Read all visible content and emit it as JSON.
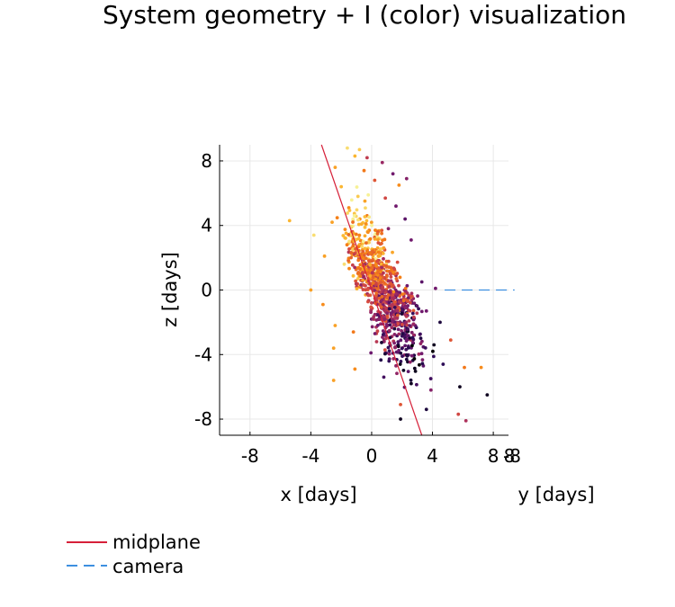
{
  "chart_data": {
    "type": "scatter",
    "title": "System geometry + I (color) visualization",
    "xlabel": "x [days]",
    "ylabel": "z [days]",
    "ylabel2": "y [days]",
    "xlim": [
      -10,
      9
    ],
    "ylim": [
      -9,
      9
    ],
    "xticks": [
      -8,
      -4,
      0,
      4,
      8
    ],
    "yticks": [
      8,
      4,
      0,
      -4,
      -8
    ],
    "xtick_labels": [
      "-8",
      "-4",
      "0",
      "4",
      "8"
    ],
    "ytick_labels": [
      "8",
      "4",
      "0",
      "-4",
      "-8"
    ],
    "y_axis_tick_overlap": "-8",
    "grid": true,
    "colormap": "inferno",
    "colors": {
      "midplane": "#d62039",
      "camera": "#3d8fe0",
      "grid": "#e8e8e8",
      "inferno": [
        "#000004",
        "#2a0b55",
        "#6b186e",
        "#a52c60",
        "#d84c3e",
        "#f57d15",
        "#fbb932",
        "#f7f195"
      ]
    },
    "series": [
      {
        "name": "midplane",
        "style": "solid",
        "x": [
          -3.3,
          3.3
        ],
        "y": [
          9,
          -9
        ]
      },
      {
        "name": "camera",
        "style": "dashed",
        "x": [
          4.8,
          9.4
        ],
        "y": [
          0,
          0
        ]
      }
    ],
    "points": [
      [
        -1.6,
        8.8,
        0.95
      ],
      [
        -0.8,
        8.7,
        0.9
      ],
      [
        -1.1,
        8.3,
        0.85
      ],
      [
        -2.4,
        7.6,
        0.8
      ],
      [
        -0.3,
        8.2,
        0.5
      ],
      [
        0.7,
        7.9,
        0.4
      ],
      [
        1.4,
        7.2,
        0.3
      ],
      [
        -0.5,
        7.4,
        0.7
      ],
      [
        0.2,
        6.8,
        0.6
      ],
      [
        1.8,
        6.5,
        0.75
      ],
      [
        2.3,
        6.9,
        0.35
      ],
      [
        -2.0,
        6.4,
        0.85
      ],
      [
        -0.9,
        5.8,
        0.9
      ],
      [
        0.9,
        5.7,
        0.55
      ],
      [
        1.6,
        5.2,
        0.3
      ],
      [
        -1.5,
        5.1,
        0.75
      ],
      [
        -5.4,
        4.3,
        0.85
      ],
      [
        -3.8,
        3.4,
        0.95
      ],
      [
        -2.6,
        4.2,
        0.8
      ],
      [
        -0.3,
        4.6,
        0.7
      ],
      [
        2.2,
        4.4,
        0.25
      ],
      [
        2.6,
        3.1,
        0.3
      ],
      [
        -1.2,
        3.2,
        0.9
      ],
      [
        0.8,
        2.6,
        0.6
      ],
      [
        -3.1,
        2.1,
        0.8
      ],
      [
        -1.8,
        1.6,
        0.95
      ],
      [
        -0.6,
        1.4,
        0.85
      ],
      [
        0.4,
        1.0,
        0.7
      ],
      [
        1.6,
        0.9,
        0.4
      ],
      [
        3.3,
        0.5,
        0.25
      ],
      [
        4.2,
        0.1,
        0.3
      ],
      [
        -4.0,
        0.0,
        0.8
      ],
      [
        -3.2,
        -0.9,
        0.75
      ],
      [
        -0.4,
        -0.3,
        0.8
      ],
      [
        0.6,
        -0.5,
        0.55
      ],
      [
        1.2,
        -1.0,
        0.2
      ],
      [
        2.3,
        -1.4,
        0.15
      ],
      [
        3.6,
        -1.3,
        0.3
      ],
      [
        4.5,
        -2.0,
        0.1
      ],
      [
        -2.4,
        -2.2,
        0.8
      ],
      [
        -1.2,
        -2.6,
        0.7
      ],
      [
        0.3,
        -2.3,
        0.45
      ],
      [
        1.5,
        -2.4,
        0.1
      ],
      [
        2.8,
        -2.8,
        0.2
      ],
      [
        4.1,
        -3.4,
        0.05
      ],
      [
        5.2,
        -3.1,
        0.6
      ],
      [
        -2.5,
        -3.6,
        0.8
      ],
      [
        0.9,
        -3.9,
        0.3
      ],
      [
        2.3,
        -4.3,
        0.1
      ],
      [
        3.4,
        -4.7,
        0.25
      ],
      [
        4.7,
        -4.6,
        0.15
      ],
      [
        6.1,
        -4.8,
        0.7
      ],
      [
        7.2,
        -4.8,
        0.75
      ],
      [
        -1.1,
        -4.9,
        0.75
      ],
      [
        0.8,
        -5.4,
        0.2
      ],
      [
        2.6,
        -5.8,
        0.05
      ],
      [
        3.9,
        -6.2,
        0.35
      ],
      [
        5.8,
        -6.0,
        0.05
      ],
      [
        7.6,
        -6.5,
        0.05
      ],
      [
        -2.5,
        -5.6,
        0.8
      ],
      [
        1.9,
        -7.1,
        0.6
      ],
      [
        3.6,
        -7.4,
        0.1
      ],
      [
        5.7,
        -7.7,
        0.55
      ],
      [
        1.9,
        -8.0,
        0.05
      ],
      [
        6.2,
        -8.1,
        0.45
      ],
      [
        0.0,
        -0.8,
        0.5
      ],
      [
        0.8,
        -1.6,
        0.15
      ],
      [
        1.1,
        0.3,
        0.6
      ],
      [
        -0.9,
        0.7,
        0.9
      ],
      [
        0.1,
        2.0,
        0.8
      ],
      [
        -1.5,
        2.9,
        0.9
      ],
      [
        1.1,
        3.8,
        0.35
      ]
    ]
  },
  "legend": {
    "items": [
      {
        "label": "midplane",
        "style": "solid"
      },
      {
        "label": "camera",
        "style": "dashed"
      }
    ]
  }
}
